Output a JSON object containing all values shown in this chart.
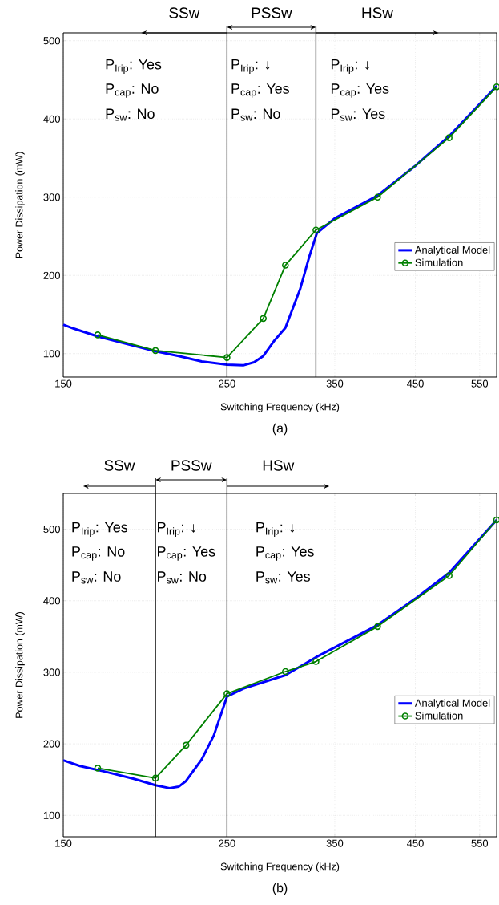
{
  "chart_data": [
    {
      "type": "line",
      "xlabel": "Switching Frequency (kHz)",
      "ylabel": "Power Dissipation (mW)",
      "log": "x",
      "xlim": [
        150,
        580
      ],
      "ylim": [
        70,
        510
      ],
      "xticks": [
        150,
        250,
        350,
        450,
        550
      ],
      "yticks": [
        100,
        200,
        300,
        400,
        500
      ],
      "grid": true,
      "legend": "right",
      "line_style": "solid",
      "series": [
        {
          "name": "Analytical Model",
          "color": "#0000ff",
          "marker": "none",
          "x": [
            150,
            155,
            167,
            200,
            215,
            231,
            250,
            263,
            272,
            280,
            290,
            300,
            314,
            323,
            331,
            350,
            400,
            450,
            500,
            580
          ],
          "values": [
            137,
            132,
            122,
            103,
            97,
            90,
            86,
            85,
            89,
            97,
            117,
            133,
            182,
            223,
            254,
            273,
            302,
            340,
            378,
            442
          ]
        },
        {
          "name": "Simulation",
          "color": "#008000",
          "marker": "circle",
          "x": [
            167,
            200,
            250,
            280,
            300,
            330,
            400,
            500,
            580
          ],
          "values": [
            124,
            104,
            95,
            145,
            213,
            258,
            300,
            376,
            441
          ]
        }
      ],
      "ref_lines": [
        {
          "axis": "x",
          "value": 250,
          "color": "#000000"
        },
        {
          "axis": "x",
          "value": 330,
          "color": "#000000"
        }
      ],
      "annotations": [
        "SSw",
        "PSSw",
        "HSw",
        "P$_{Irip}$: Yes",
        "P$_{cap}$: No",
        "P$_{sw}$: No",
        "P$_{Irip}$: ↓",
        "P$_{cap}$: Yes",
        "P$_{sw}$: No",
        "P$_{Irip}$: ↓",
        "P$_{cap}$: Yes",
        "P$_{sw}$: Yes",
        "(a)"
      ]
    },
    {
      "type": "line",
      "xlabel": "Switching Frequency (kHz)",
      "ylabel": "Power Dissipation (mW)",
      "log": "x",
      "xlim": [
        150,
        580
      ],
      "ylim": [
        70,
        550
      ],
      "xticks": [
        150,
        250,
        350,
        450,
        550
      ],
      "yticks": [
        100,
        200,
        300,
        400,
        500
      ],
      "grid": true,
      "legend": "right",
      "line_style": "solid",
      "series": [
        {
          "name": "Analytical Model",
          "color": "#0000ff",
          "marker": "none",
          "x": [
            150,
            158,
            171,
            187,
            200,
            209,
            215,
            220,
            231,
            240,
            250,
            263,
            300,
            330,
            400,
            450,
            500,
            580
          ],
          "values": [
            177,
            169,
            161,
            151,
            142,
            138,
            140,
            148,
            178,
            212,
            266,
            277,
            296,
            321,
            366,
            403,
            439,
            513
          ]
        },
        {
          "name": "Simulation",
          "color": "#008000",
          "marker": "circle",
          "x": [
            167,
            200,
            220,
            250,
            300,
            330,
            400,
            500,
            580
          ],
          "values": [
            166,
            152,
            198,
            270,
            301,
            315,
            364,
            435,
            513
          ]
        }
      ],
      "ref_lines": [
        {
          "axis": "x",
          "value": 200,
          "color": "#000000"
        },
        {
          "axis": "x",
          "value": 250,
          "color": "#000000"
        }
      ],
      "annotations": [
        "SSw",
        "PSSw",
        "HSw",
        "P$_{Irip}$: Yes",
        "P$_{cap}$: No",
        "P$_{sw}$: No",
        "P$_{Irip}$: ↓",
        "P$_{cap}$: Yes",
        "P$_{sw}$: No",
        "P$_{Irip}$: ↓",
        "P$_{cap}$: Yes",
        "P$_{sw}$: Yes",
        "(b)"
      ]
    }
  ]
}
